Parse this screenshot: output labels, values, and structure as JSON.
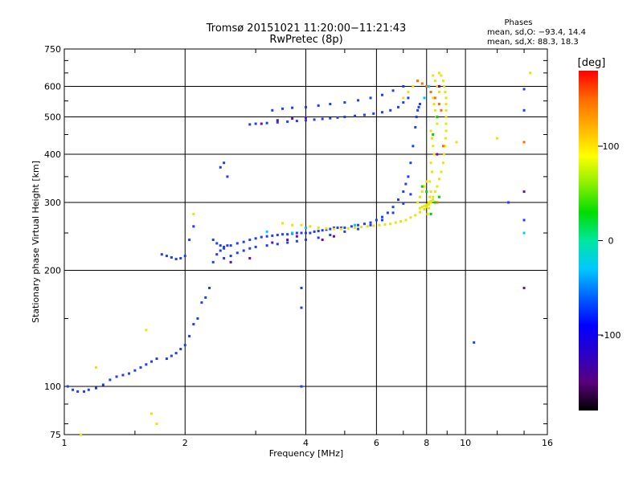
{
  "chart_data": {
    "type": "scatter",
    "title": "Tromsø 20151021 11:20:00−11:21:43",
    "subtitle": "RwPretec (8p)",
    "xlabel": "Frequency [MHz]",
    "ylabel": "Stationary phase Virtual Height [km]",
    "x_scale": "log",
    "y_scale": "log",
    "xlim": [
      1,
      16
    ],
    "ylim": [
      75,
      750
    ],
    "x_ticks": [
      {
        "value": 1,
        "label": "1"
      },
      {
        "value": 2,
        "label": "2"
      },
      {
        "value": 4,
        "label": "4"
      },
      {
        "value": 6,
        "label": "6"
      },
      {
        "value": 8,
        "label": "8"
      },
      {
        "value": 10,
        "label": "10"
      },
      {
        "value": 16,
        "label": "16"
      }
    ],
    "y_ticks": [
      {
        "value": 75,
        "label": "75"
      },
      {
        "value": 100,
        "label": "100"
      },
      {
        "value": 200,
        "label": "200"
      },
      {
        "value": 300,
        "label": "300"
      },
      {
        "value": 400,
        "label": "400"
      },
      {
        "value": 500,
        "label": "500"
      },
      {
        "value": 600,
        "label": "600"
      },
      {
        "value": 750,
        "label": "750"
      }
    ],
    "grid": true,
    "phase_info": {
      "heading": "Phases",
      "line1": "mean, sd,O:  −93.4, 14.4",
      "line2": "mean, sd,X:  88.3, 18.3"
    },
    "colorbar": {
      "label": "[deg]",
      "range": [
        -180,
        180
      ],
      "ticks": [
        {
          "value": 100,
          "label": "100"
        },
        {
          "value": 0,
          "label": "0"
        },
        {
          "value": -100,
          "label": "-100"
        }
      ],
      "stops": [
        "#000000",
        "#5a007a",
        "#2a00c8",
        "#0000ff",
        "#0060ff",
        "#00c8ff",
        "#00e6a0",
        "#00dc00",
        "#8cf000",
        "#ffff00",
        "#ffb400",
        "#ff6a00",
        "#ff0000"
      ]
    },
    "series": [
      {
        "phase": -93,
        "color": "#1e3cff",
        "x": [
          1.02,
          1.05,
          1.08,
          1.12,
          1.15,
          1.2,
          1.25,
          1.3,
          1.35,
          1.4,
          1.45,
          1.5,
          1.55,
          1.6,
          1.65,
          1.7,
          1.8,
          1.85,
          1.9,
          1.95,
          2.0,
          2.05,
          2.1,
          2.15,
          2.2,
          2.25,
          2.3,
          2.35,
          2.4,
          2.45,
          2.5,
          2.55,
          1.75,
          1.8,
          1.85,
          1.9,
          1.95,
          2.0,
          2.05,
          2.1,
          2.35,
          2.4,
          2.45,
          2.5,
          2.6,
          2.7,
          2.8,
          2.9,
          3.0,
          3.1,
          3.2,
          3.3,
          3.4,
          3.5,
          3.6,
          3.7,
          3.8,
          3.9,
          4.0,
          4.1,
          4.2,
          4.3,
          4.4,
          4.5,
          4.6,
          4.7,
          4.8,
          4.9,
          5.0,
          5.2,
          5.4,
          5.6,
          5.8,
          6.0,
          6.2,
          6.4,
          6.6,
          6.8,
          7.0,
          7.1,
          7.2,
          7.3,
          7.4,
          7.5,
          7.55,
          7.6,
          7.65,
          7.7,
          2.5,
          2.6,
          2.7,
          2.8,
          2.9,
          3.0,
          3.2,
          3.4,
          3.6,
          3.8,
          4.0,
          4.3,
          4.6,
          5.0,
          5.4,
          5.8,
          6.2,
          6.6,
          7.0,
          7.3,
          2.9,
          3.0,
          3.2,
          3.4,
          3.6,
          3.8,
          4.0,
          4.2,
          4.4,
          4.6,
          4.8,
          5.0,
          5.3,
          5.6,
          5.9,
          6.2,
          6.5,
          6.8,
          7.0,
          7.2,
          3.3,
          3.5,
          3.7,
          4.0,
          4.3,
          4.6,
          5.0,
          5.4,
          5.8,
          6.2,
          6.6,
          7.0,
          2.45,
          2.5,
          2.55,
          3.9,
          3.9,
          3.9,
          14.0,
          14.0,
          12.8,
          14.0,
          10.5
        ],
        "y": [
          100,
          98,
          97,
          97,
          98,
          99,
          101,
          104,
          106,
          107,
          108,
          110,
          112,
          114,
          116,
          118,
          118,
          120,
          122,
          125,
          128,
          135,
          145,
          150,
          165,
          170,
          180,
          210,
          220,
          225,
          228,
          232,
          220,
          218,
          216,
          214,
          215,
          218,
          240,
          260,
          240,
          235,
          232,
          230,
          232,
          235,
          237,
          240,
          242,
          244,
          245,
          246,
          247,
          248,
          248,
          249,
          250,
          250,
          250,
          250,
          252,
          253,
          254,
          255,
          256,
          258,
          258,
          258,
          258,
          260,
          262,
          264,
          266,
          270,
          275,
          282,
          292,
          305,
          320,
          335,
          350,
          380,
          420,
          470,
          500,
          520,
          530,
          540,
          215,
          218,
          222,
          225,
          228,
          230,
          232,
          234,
          236,
          238,
          240,
          243,
          247,
          252,
          256,
          262,
          270,
          282,
          298,
          315,
          478,
          480,
          482,
          484,
          486,
          488,
          490,
          492,
          494,
          496,
          498,
          500,
          503,
          506,
          510,
          514,
          520,
          530,
          545,
          560,
          520,
          525,
          528,
          530,
          535,
          540,
          545,
          552,
          560,
          570,
          585,
          600,
          370,
          380,
          350,
          180,
          160,
          100,
          590,
          520,
          300,
          270,
          130
        ]
      },
      {
        "phase": 88,
        "color": "#e6e600",
        "x": [
          3.5,
          3.7,
          3.9,
          4.1,
          4.3,
          4.5,
          4.7,
          4.9,
          5.1,
          5.3,
          5.5,
          5.7,
          5.9,
          6.1,
          6.3,
          6.5,
          6.7,
          6.9,
          7.1,
          7.3,
          7.5,
          7.7,
          7.9,
          8.0,
          8.1,
          8.2,
          8.3,
          8.4,
          8.5,
          8.6,
          8.7,
          8.8,
          8.85,
          8.9,
          8.92,
          8.95,
          8.95,
          8.95,
          8.95,
          8.95,
          8.95,
          8.9,
          8.85,
          8.8,
          8.7,
          8.6,
          8.3,
          8.4,
          8.5,
          8.6,
          8.3,
          8.35,
          8.4,
          8.45,
          8.5,
          8.2,
          8.25,
          8.3,
          8.35,
          8.2,
          8.25,
          8.15,
          8.2,
          8.1,
          8.15,
          8.1,
          8.05,
          7.6,
          7.7,
          7.8,
          7.9,
          8.0,
          7.7,
          7.8,
          7.9,
          8.0,
          8.1,
          8.2,
          8.3,
          7.0,
          7.2,
          7.4,
          7.6,
          2.1,
          1.6,
          1.65,
          1.2,
          1.1,
          1.7,
          12.0,
          9.5,
          14.5
        ],
        "y": [
          265,
          262,
          262,
          260,
          258,
          257,
          256,
          256,
          257,
          258,
          259,
          260,
          261,
          262,
          263,
          264,
          266,
          268,
          270,
          274,
          278,
          283,
          288,
          292,
          296,
          302,
          310,
          320,
          330,
          345,
          360,
          380,
          400,
          420,
          440,
          460,
          480,
          500,
          520,
          540,
          560,
          580,
          600,
          620,
          640,
          650,
          640,
          620,
          600,
          580,
          560,
          540,
          520,
          500,
          480,
          460,
          440,
          420,
          400,
          380,
          360,
          340,
          320,
          300,
          310,
          290,
          280,
          300,
          310,
          320,
          330,
          340,
          290,
          292,
          294,
          296,
          298,
          300,
          305,
          560,
          580,
          600,
          620,
          280,
          140,
          85,
          112,
          75,
          80,
          440,
          430,
          650
        ]
      },
      {
        "phase": 150,
        "color": "#ff6a00",
        "x": [
          7.6,
          7.8,
          8.0,
          8.2,
          8.4,
          8.6,
          8.7,
          14.0,
          8.8,
          8.5
        ],
        "y": [
          620,
          610,
          600,
          580,
          560,
          540,
          520,
          430,
          420,
          300
        ]
      },
      {
        "phase": -150,
        "color": "#6a0ab4",
        "x": [
          3.3,
          3.6,
          3.8,
          3.1,
          3.4,
          3.7,
          4.0,
          4.4,
          4.7,
          8.5,
          8.6,
          14.0,
          14.0,
          2.6,
          2.9
        ],
        "y": [
          236,
          240,
          245,
          480,
          490,
          495,
          498,
          240,
          245,
          400,
          600,
          320,
          180,
          210,
          215
        ]
      },
      {
        "phase": 20,
        "color": "#00d200",
        "x": [
          8.2,
          8.4,
          8.6,
          8.0,
          7.8,
          8.3,
          8.5
        ],
        "y": [
          280,
          300,
          310,
          320,
          330,
          450,
          500
        ]
      },
      {
        "phase": -20,
        "color": "#00c8ff",
        "x": [
          3.2,
          3.7,
          4.0,
          5.3,
          14.0,
          8.1,
          7.9
        ],
        "y": [
          252,
          250,
          258,
          262,
          250,
          600,
          560
        ]
      }
    ]
  }
}
